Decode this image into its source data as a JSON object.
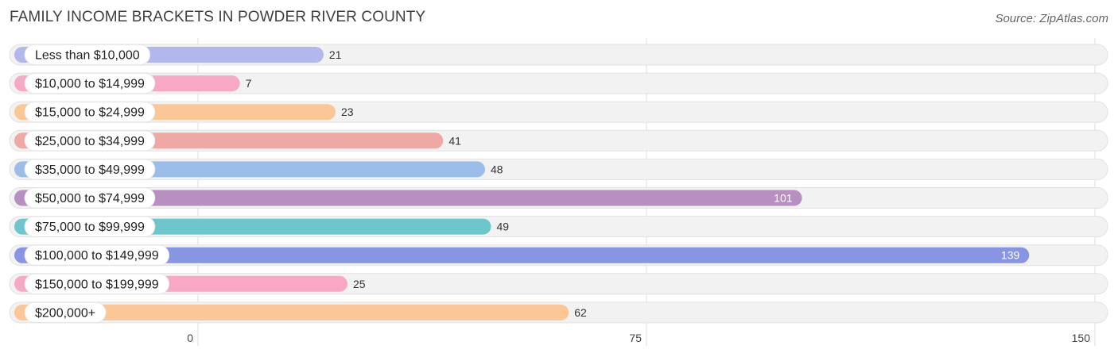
{
  "header": {
    "title": "FAMILY INCOME BRACKETS IN POWDER RIVER COUNTY",
    "source": "Source: ZipAtlas.com"
  },
  "chart_data": {
    "type": "bar",
    "orientation": "horizontal",
    "title": "FAMILY INCOME BRACKETS IN POWDER RIVER COUNTY",
    "categories": [
      "Less than $10,000",
      "$10,000 to $14,999",
      "$15,000 to $24,999",
      "$25,000 to $34,999",
      "$35,000 to $49,999",
      "$50,000 to $74,999",
      "$75,000 to $99,999",
      "$100,000 to $149,999",
      "$150,000 to $199,999",
      "$200,000+"
    ],
    "values": [
      21,
      7,
      23,
      41,
      48,
      101,
      49,
      139,
      25,
      62
    ],
    "colors": [
      "#b3b8ec",
      "#f7a8c4",
      "#fbc796",
      "#eea9a5",
      "#9bbde9",
      "#b78fc1",
      "#6ec6cd",
      "#8795e2",
      "#f7a8c4",
      "#fbc796"
    ],
    "xlim": [
      0,
      150
    ],
    "ticks": [
      0,
      75,
      150
    ],
    "tick_labels": [
      "0",
      "75",
      "150"
    ],
    "xlabel": "",
    "ylabel": "",
    "grid": true
  }
}
